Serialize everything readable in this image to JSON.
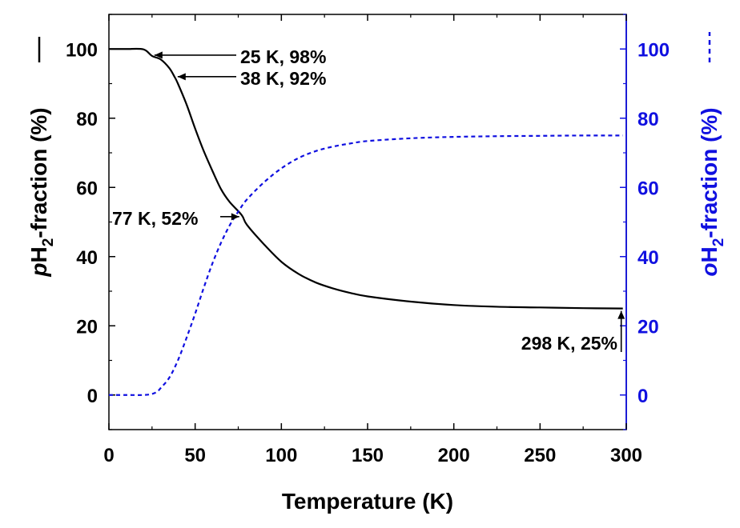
{
  "chart_data": {
    "type": "line",
    "xlabel": "Temperature (K)",
    "ylabel_left": {
      "italic": "p",
      "base": "H",
      "sub": "2",
      "rest": "-fraction (%)",
      "legend_glyph": "solid-line"
    },
    "ylabel_right": {
      "italic": "o",
      "base": "H",
      "sub": "2",
      "rest": "-fraction (%)",
      "legend_glyph": "dashed-line"
    },
    "xlim": [
      0,
      300
    ],
    "ylim": [
      -10,
      110
    ],
    "x_ticks": [
      "0",
      "50",
      "100",
      "150",
      "200",
      "250",
      "300"
    ],
    "y_ticks_left": [
      "0",
      "20",
      "40",
      "60",
      "80",
      "100"
    ],
    "y_ticks_right": [
      "0",
      "20",
      "40",
      "60",
      "80",
      "100"
    ],
    "colors": {
      "para": "#000000",
      "ortho": "#1010e0",
      "right_axis": "#1010e0"
    },
    "series": [
      {
        "name": "pH2-fraction",
        "style": "solid",
        "x": [
          0,
          10,
          20,
          25,
          30,
          35,
          38,
          40,
          45,
          50,
          55,
          60,
          65,
          70,
          77,
          80,
          90,
          100,
          110,
          120,
          130,
          140,
          150,
          175,
          200,
          225,
          250,
          275,
          298
        ],
        "values": [
          100,
          100,
          99.9,
          98,
          97,
          94.5,
          92,
          90,
          84,
          77,
          70.5,
          64.8,
          59.5,
          55.8,
          52,
          49.2,
          43.5,
          38.5,
          35,
          32.5,
          30.8,
          29.5,
          28.5,
          27,
          26,
          25.5,
          25.3,
          25.1,
          25
        ]
      },
      {
        "name": "oH2-fraction",
        "style": "dashed",
        "x": [
          0,
          10,
          20,
          25,
          28,
          30,
          35,
          40,
          45,
          50,
          55,
          60,
          65,
          70,
          75,
          80,
          90,
          100,
          110,
          120,
          130,
          140,
          150,
          175,
          200,
          225,
          250,
          275,
          298
        ],
        "values": [
          0,
          0,
          0,
          0.3,
          1,
          2,
          5,
          10,
          16.5,
          23.5,
          31,
          38,
          44,
          49,
          53,
          56.5,
          61.5,
          65.5,
          68.5,
          70.5,
          71.8,
          72.7,
          73.4,
          74.2,
          74.6,
          74.8,
          74.9,
          75,
          75
        ]
      }
    ],
    "annotations": [
      {
        "text": "25 K, 98%",
        "x": 25,
        "y": 98
      },
      {
        "text": "38 K, 92%",
        "x": 38,
        "y": 92
      },
      {
        "text": "77 K, 52%",
        "x": 77,
        "y": 52
      },
      {
        "text": "298 K, 25%",
        "x": 298,
        "y": 25
      }
    ]
  }
}
